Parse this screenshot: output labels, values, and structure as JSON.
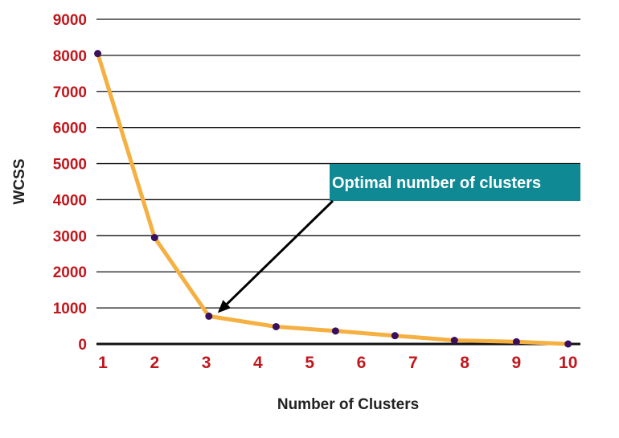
{
  "chart_data": {
    "type": "line",
    "xlabel": "Number of Clusters",
    "ylabel": "WCSS",
    "ylim": [
      0,
      9000
    ],
    "yticks": [
      0,
      1000,
      2000,
      3000,
      4000,
      5000,
      6000,
      7000,
      8000,
      9000
    ],
    "xticks": [
      1,
      2,
      3,
      4,
      5,
      6,
      7,
      8,
      9,
      10
    ],
    "series": [
      {
        "x": [
          0.9,
          2,
          3.05,
          4.35,
          5.5,
          6.65,
          7.8,
          9,
          10
        ],
        "y": [
          8050,
          2950,
          770,
          480,
          360,
          230,
          100,
          60,
          0
        ]
      }
    ],
    "grid": true,
    "colors": {
      "line": "#f5b042",
      "marker": "#3a0f5c",
      "tick": "#c0171d",
      "annotation_box": "#0f8a94"
    },
    "annotation": {
      "text": "Optimal number of clusters",
      "target_x": 3.05,
      "target_y": 770
    }
  }
}
